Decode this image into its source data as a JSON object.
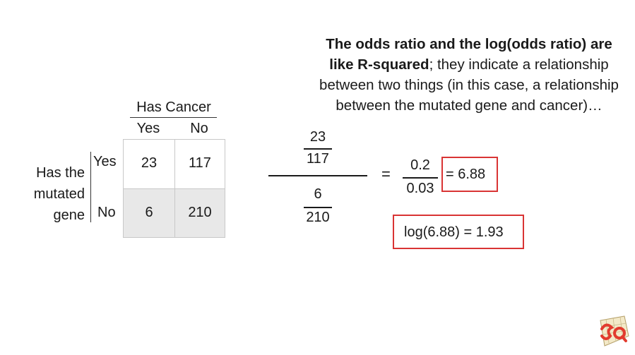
{
  "note": {
    "bold": "The odds ratio and the log(odds ratio) are like R-squared",
    "rest": "; they indicate a relationship between two things (in this case, a relationship between the mutated gene and cancer)…"
  },
  "table": {
    "column_title": "Has Cancer",
    "columns": [
      "Yes",
      "No"
    ],
    "row_title_lines": [
      "Has the",
      "mutated",
      "gene"
    ],
    "rows": [
      {
        "label": "Yes",
        "values": [
          "23",
          "117"
        ]
      },
      {
        "label": "No",
        "values": [
          "6",
          "210"
        ]
      }
    ]
  },
  "formula": {
    "top_num": "23",
    "top_den": "117",
    "bottom_num": "6",
    "bottom_den": "210",
    "equals": "=",
    "simplified_num": "0.2",
    "simplified_den": "0.03",
    "odds_ratio": "= 6.88",
    "log_result": "log(6.88) = 1.93"
  },
  "colors": {
    "highlight_box": "#d93434",
    "shaded_row": "#e8e8e8"
  },
  "logo": {
    "icon": "sq-logo-icon"
  }
}
